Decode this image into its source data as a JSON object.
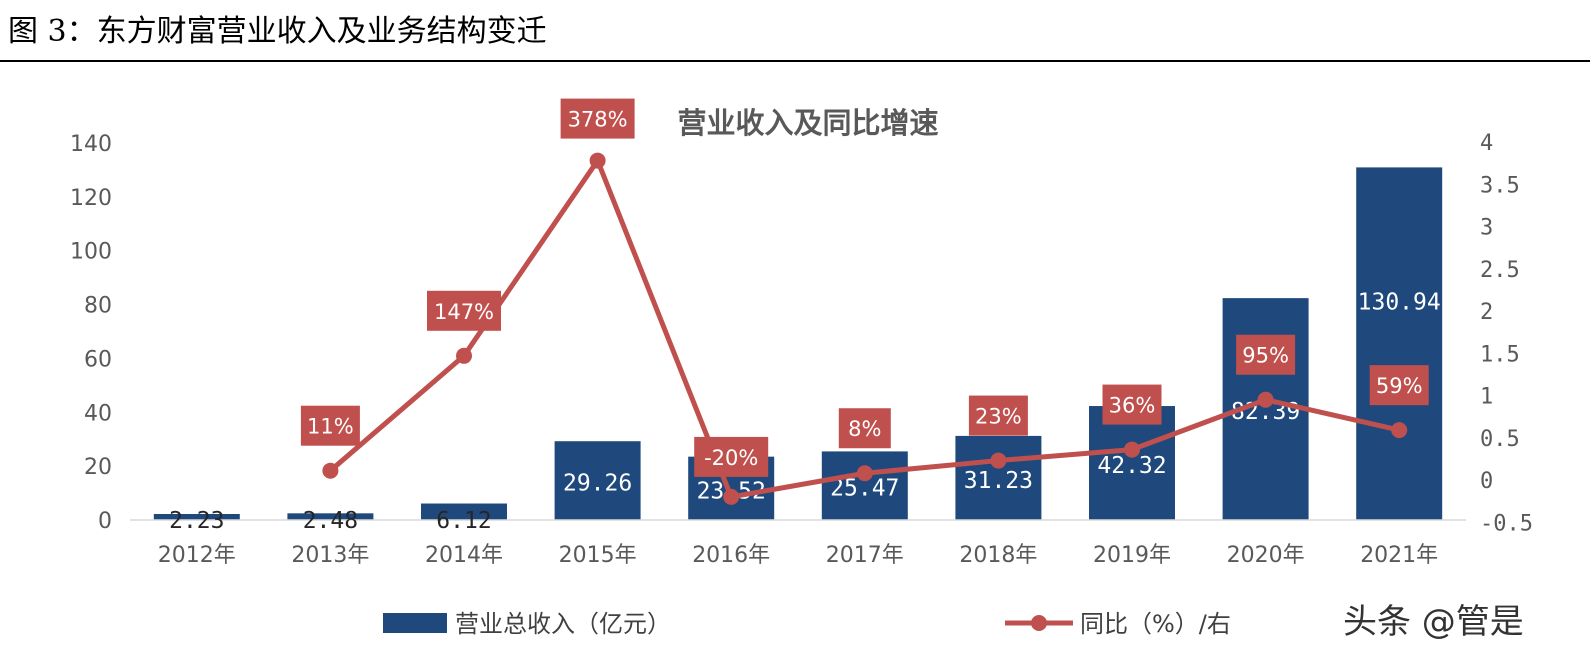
{
  "figure_caption": "图 3：东方财富营业收入及业务结构变迁",
  "watermark": "头条 @管是",
  "colors": {
    "bar": "#1f497d",
    "line": "#c0504d",
    "label_box": "#c0504d",
    "axis_text": "#595959",
    "chart_title": "#595959"
  },
  "chart_data": {
    "type": "bar",
    "title": "营业收入及同比增速",
    "categories": [
      "2012年",
      "2013年",
      "2014年",
      "2015年",
      "2016年",
      "2017年",
      "2018年",
      "2019年",
      "2020年",
      "2021年"
    ],
    "series": [
      {
        "name": "营业总收入（亿元）",
        "type": "bar",
        "axis": "left",
        "values": [
          2.23,
          2.48,
          6.12,
          29.26,
          23.52,
          25.47,
          31.23,
          42.32,
          82.39,
          130.94
        ],
        "labels": [
          "2.23",
          "2.48",
          "6.12",
          "29.26",
          "23.52",
          "25.47",
          "31.23",
          "42.32",
          "82.39",
          "130.94"
        ]
      },
      {
        "name": "同比（%）/右",
        "type": "line",
        "axis": "right",
        "values": [
          null,
          0.11,
          1.47,
          3.78,
          -0.2,
          0.08,
          0.23,
          0.36,
          0.95,
          0.59
        ],
        "labels": [
          null,
          "11%",
          "147%",
          "378%",
          "-20%",
          "8%",
          "23%",
          "36%",
          "95%",
          "59%"
        ]
      }
    ],
    "y_left": {
      "ylim": [
        0,
        140
      ],
      "ticks": [
        "0",
        "20",
        "40",
        "60",
        "80",
        "100",
        "120",
        "140"
      ]
    },
    "y_right": {
      "ylim": [
        -0.5,
        4
      ],
      "ticks": [
        "-0.5",
        "0",
        "0.5",
        "1",
        "1.5",
        "2",
        "2.5",
        "3",
        "3.5",
        "4"
      ]
    },
    "grid": false,
    "legend_position": "bottom"
  }
}
